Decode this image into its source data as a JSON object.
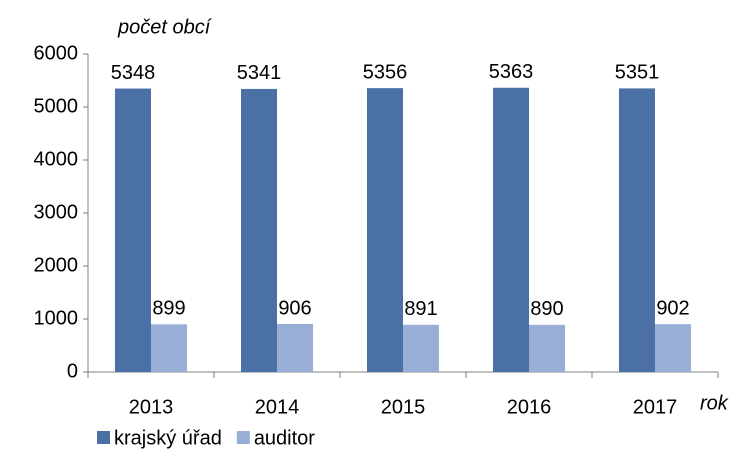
{
  "chart_data": {
    "type": "bar",
    "y_label": "počet obcí",
    "x_label": "rok",
    "categories": [
      "2013",
      "2014",
      "2015",
      "2016",
      "2017"
    ],
    "series": [
      {
        "name": "krajský úřad",
        "color": "#4a70a6",
        "values": [
          5348,
          5341,
          5356,
          5363,
          5351
        ]
      },
      {
        "name": "auditor",
        "color": "#98aed7",
        "values": [
          899,
          906,
          891,
          890,
          902
        ]
      }
    ],
    "ylim": [
      0,
      6000
    ],
    "yticks": [
      0,
      1000,
      2000,
      3000,
      4000,
      5000,
      6000
    ],
    "grid": false,
    "legend": "bottom"
  }
}
